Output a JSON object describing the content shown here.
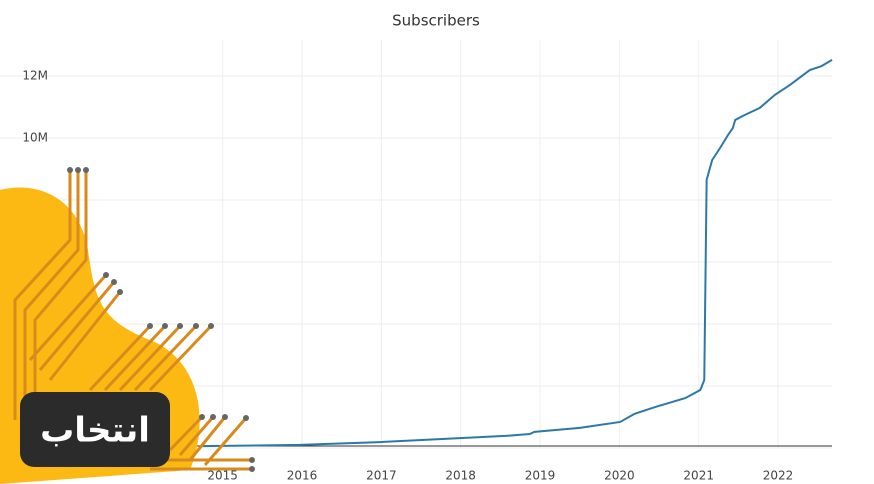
{
  "chart_data": {
    "type": "line",
    "title": "Subscribers",
    "x": [
      2014.71,
      2015.97,
      2016.98,
      2017.99,
      2018.56,
      2018.87,
      2018.93,
      2019.5,
      2020.01,
      2020.19,
      2020.45,
      2020.83,
      2021.02,
      2021.07,
      2021.1,
      2021.17,
      2021.27,
      2021.37,
      2021.43,
      2021.46,
      2021.58,
      2021.77,
      2021.96,
      2022.15,
      2022.4,
      2022.55,
      2022.68
    ],
    "series": [
      {
        "name": "Subscribers",
        "color": "#2e78a8",
        "values": [
          60000,
          100000,
          190000,
          320000,
          390000,
          450000,
          520000,
          650000,
          840000,
          1100000,
          1320000,
          1610000,
          1870000,
          2190000,
          8650000,
          9290000,
          9680000,
          10100000,
          10320000,
          10580000,
          10740000,
          10970000,
          11390000,
          11710000,
          12190000,
          12320000,
          12520000
        ]
      }
    ],
    "xlim": [
      2013,
      2022.68
    ],
    "xticks": [
      2015,
      2016,
      2017,
      2018,
      2019,
      2020,
      2021,
      2022
    ],
    "ylim": [
      0,
      13160000
    ],
    "yticks": [
      {
        "value": 0,
        "label": null
      },
      {
        "value": 2000000,
        "label": null
      },
      {
        "value": 4000000,
        "label": null
      },
      {
        "value": 6000000,
        "label": null
      },
      {
        "value": 8000000,
        "label": null
      },
      {
        "value": 10000000,
        "label": "10M"
      },
      {
        "value": 12000000,
        "label": "12M"
      }
    ],
    "grid": true
  },
  "logo": {
    "text": "انتخاب"
  }
}
